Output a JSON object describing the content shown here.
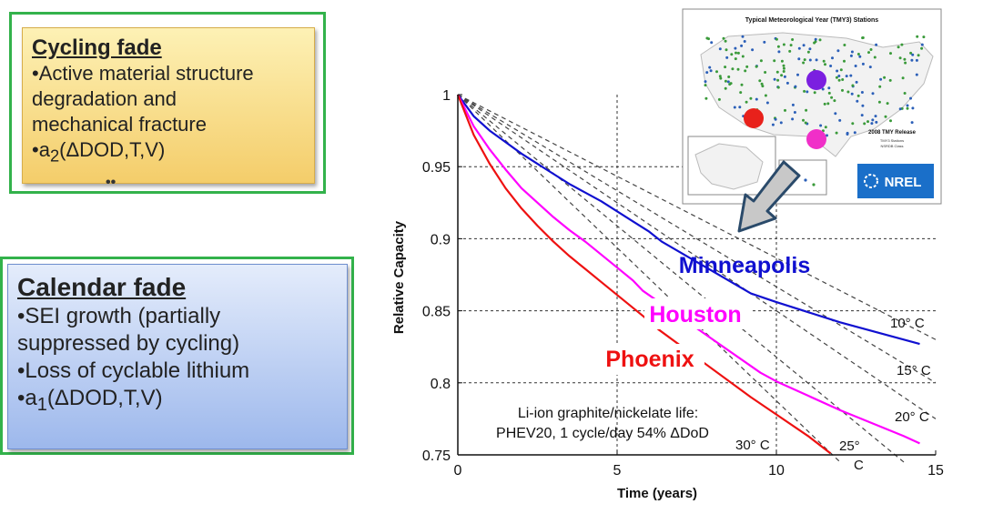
{
  "cycling": {
    "title": "Cycling fade",
    "b1": "•Active material structure",
    "b2": "degradation and",
    "b3": "mechanical fracture",
    "b4_prefix": "•a",
    "b4_sub": "2",
    "b4_rest": "(ΔDOD,T,V)",
    "dots": "••"
  },
  "calendar": {
    "title": "Calendar fade",
    "b1": "•SEI growth (partially",
    "b2": "suppressed by cycling)",
    "b3": "•Loss of cyclable lithium",
    "b4_prefix": "•a",
    "b4_sub": "1",
    "b4_rest": "(ΔDOD,T,V)"
  },
  "map": {
    "title": "Typical Meteorological Year (TMY3) Stations",
    "legend_title": "2008 TMY Release",
    "legend_l1": "TMY3 Stations",
    "legend_l2": "NSRDB Class",
    "logo": "NREL",
    "colors": {
      "minneapolis": "#7b1fe0",
      "phoenix": "#e8211b",
      "houston": "#f02fc8",
      "station_blue": "#2b5fb8",
      "station_green": "#3a9a3a"
    }
  },
  "annotation": {
    "line1": "Li-ion graphite/nickelate life:",
    "line2": "PHEV20, 1 cycle/day 54% ΔDoD"
  },
  "temp_labels": [
    "10° C",
    "15° C",
    "20° C",
    "25°",
    "C",
    "30° C"
  ],
  "chart_data": {
    "type": "line",
    "xlabel": "Time (years)",
    "ylabel": "Relative Capacity",
    "xlim": [
      0,
      15
    ],
    "ylim": [
      0.75,
      1.0
    ],
    "xticks": [
      0,
      5,
      10,
      15
    ],
    "yticks": [
      0.75,
      0.8,
      0.85,
      0.9,
      0.95,
      1.0
    ],
    "ytick_labels": [
      "0.75",
      "0.8",
      "0.85",
      "0.9",
      "0.95",
      "1"
    ],
    "grid": true,
    "series": [
      {
        "name": "Minneapolis",
        "color": "#1010d0",
        "x": [
          0,
          0.5,
          1,
          1.5,
          2,
          2.5,
          3,
          3.5,
          4,
          4.5,
          5,
          5.5,
          6,
          6.4,
          9.2,
          10,
          11,
          12,
          13,
          14,
          14.5
        ],
        "y": [
          1.0,
          0.985,
          0.975,
          0.967,
          0.959,
          0.952,
          0.945,
          0.938,
          0.932,
          0.926,
          0.919,
          0.912,
          0.905,
          0.898,
          0.862,
          0.856,
          0.849,
          0.842,
          0.836,
          0.83,
          0.827
        ]
      },
      {
        "name": "Houston",
        "color": "#ff00ff",
        "x": [
          0,
          0.5,
          1,
          1.5,
          2,
          2.5,
          3,
          3.5,
          4,
          4.5,
          5,
          5.5,
          5.8,
          9.5,
          10,
          11,
          12,
          13,
          14,
          14.5
        ],
        "y": [
          1.0,
          0.978,
          0.962,
          0.948,
          0.935,
          0.925,
          0.915,
          0.906,
          0.898,
          0.889,
          0.88,
          0.871,
          0.864,
          0.807,
          0.801,
          0.791,
          0.781,
          0.772,
          0.763,
          0.758
        ]
      },
      {
        "name": "Phoenix",
        "color": "#ee1111",
        "x": [
          0,
          0.5,
          1,
          1.5,
          2,
          2.5,
          3,
          3.5,
          4,
          4.5,
          5,
          5.5,
          6,
          6.3,
          9.2,
          10,
          11,
          11.7
        ],
        "y": [
          1.0,
          0.972,
          0.952,
          0.935,
          0.921,
          0.909,
          0.898,
          0.888,
          0.879,
          0.87,
          0.861,
          0.852,
          0.843,
          0.837,
          0.79,
          0.778,
          0.763,
          0.751
        ]
      }
    ],
    "reference_lines": [
      {
        "label": "10° C",
        "x": [
          0,
          15
        ],
        "y": [
          1.0,
          0.83
        ]
      },
      {
        "label": "15° C",
        "x": [
          0,
          15
        ],
        "y": [
          1.0,
          0.8
        ]
      },
      {
        "label": "20° C",
        "x": [
          0,
          15
        ],
        "y": [
          1.0,
          0.775
        ]
      },
      {
        "label": "25° C",
        "x": [
          0,
          14
        ],
        "y": [
          1.0,
          0.745
        ]
      },
      {
        "label": "30° C",
        "x": [
          0,
          12
        ],
        "y": [
          1.0,
          0.745
        ]
      }
    ]
  }
}
